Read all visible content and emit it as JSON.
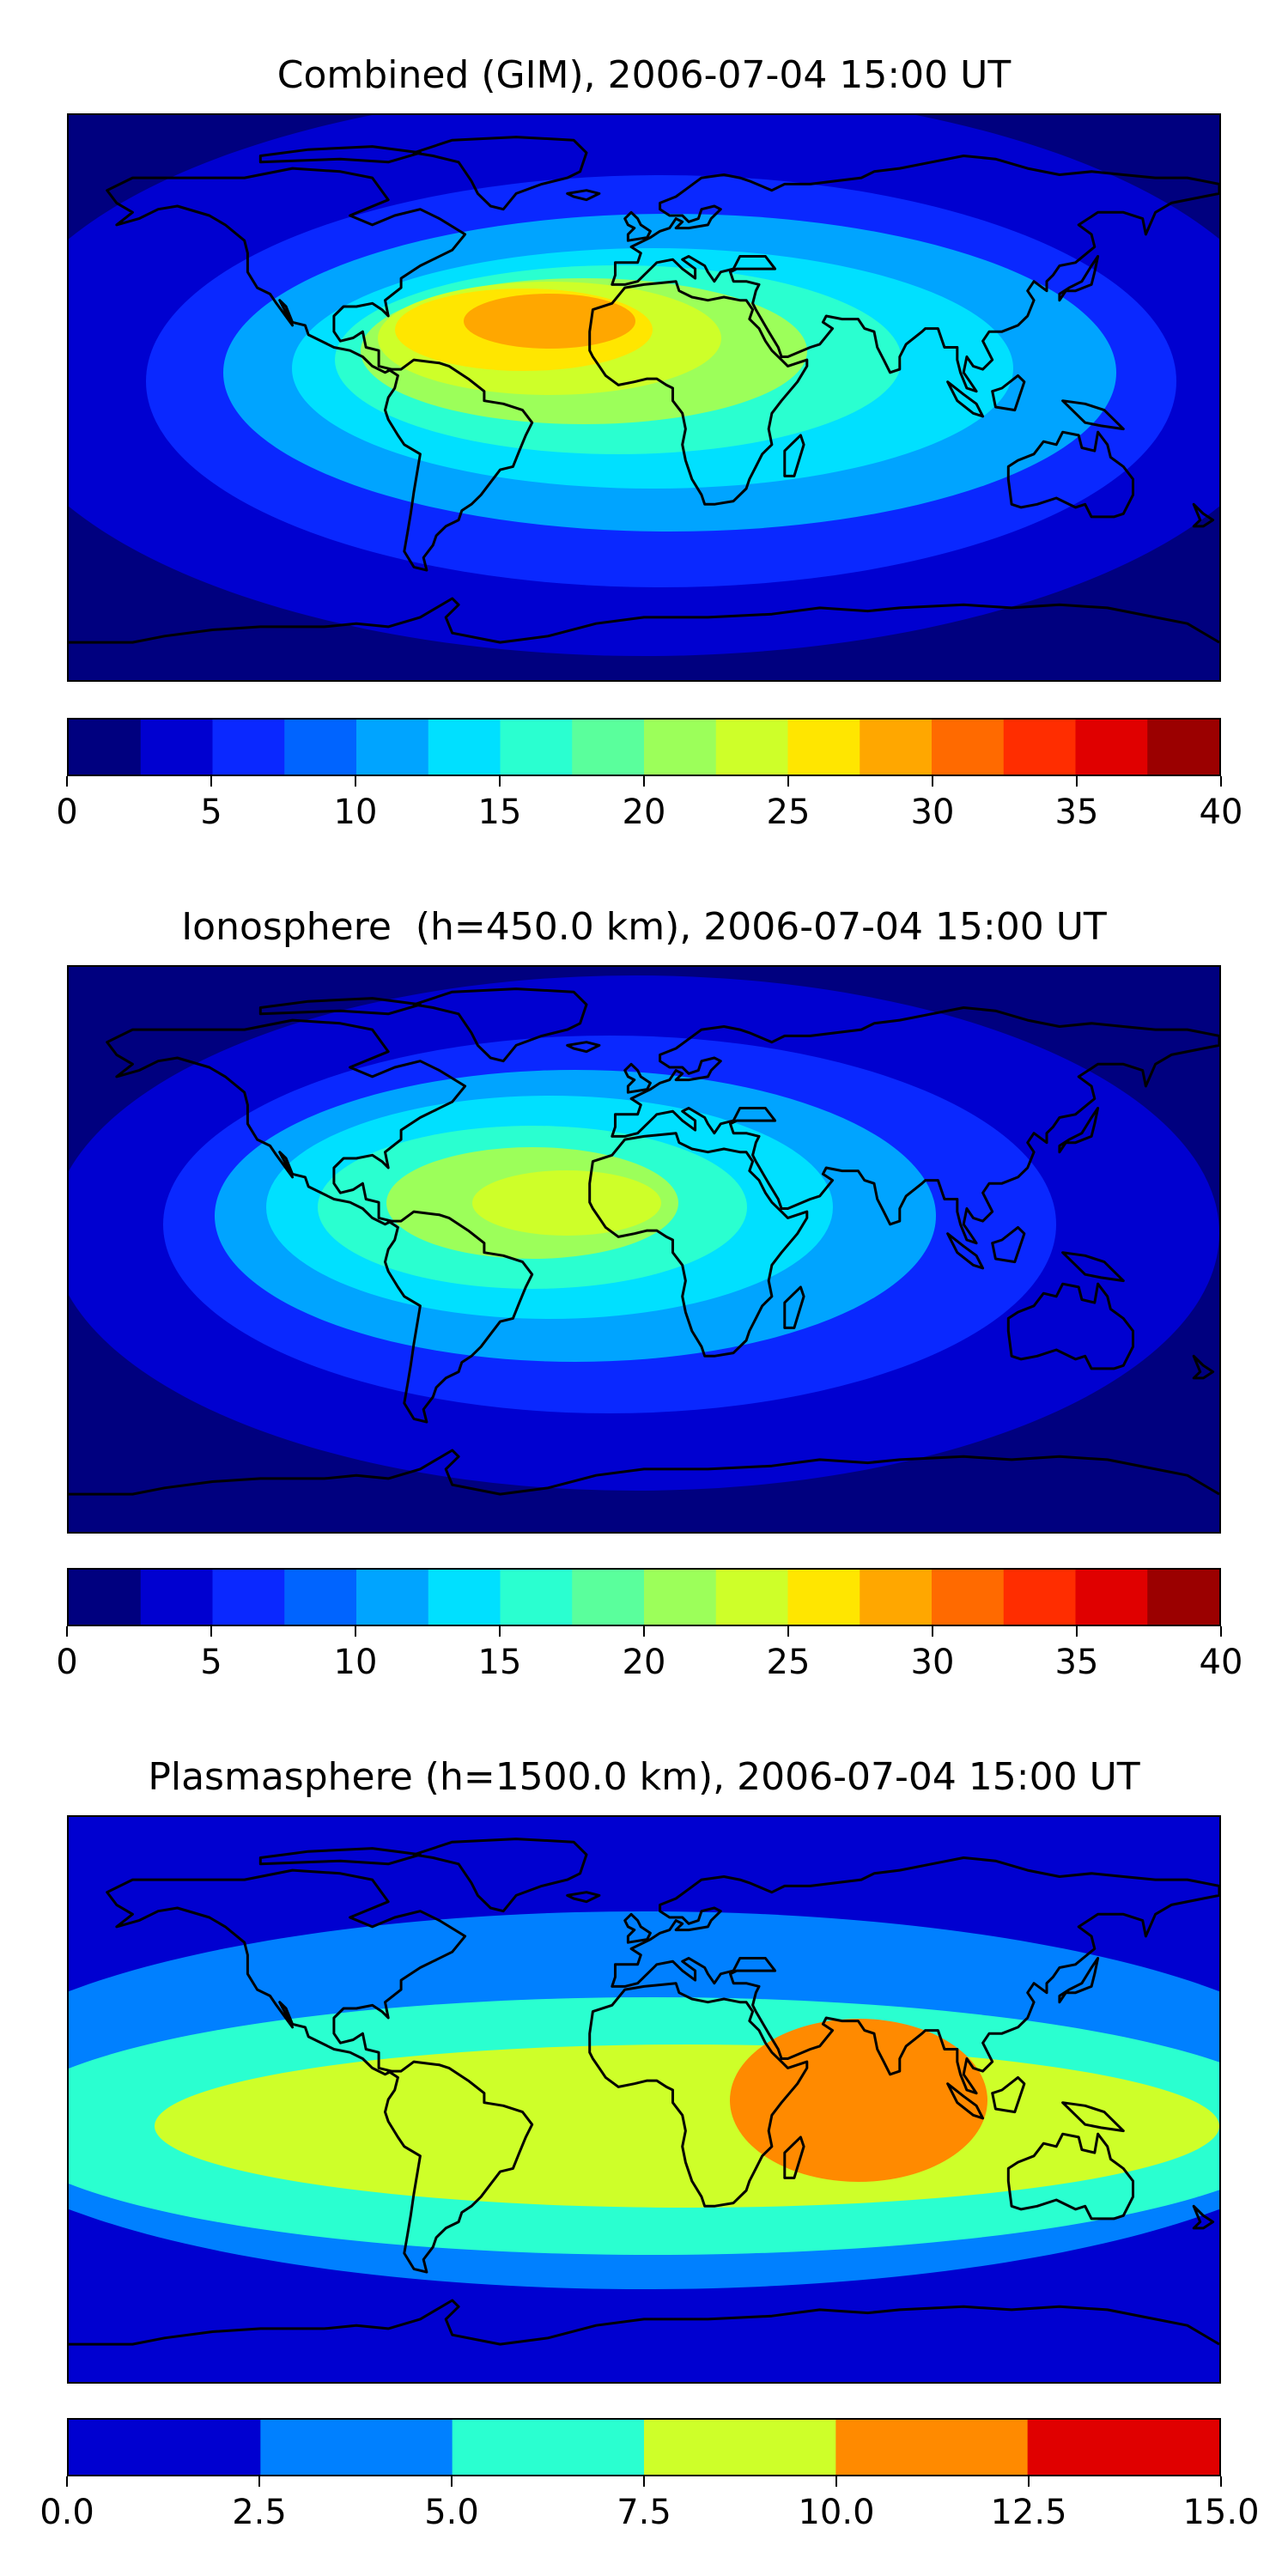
{
  "panels": [
    {
      "id": "combined",
      "title": "Combined (GIM), 2006-07-04 15:00 UT",
      "colorbar": {
        "min": 0,
        "max": 40,
        "levels": [
          0,
          2.5,
          5,
          7.5,
          10,
          12.5,
          15,
          17.5,
          20,
          22.5,
          25,
          27.5,
          30,
          32.5,
          35,
          37.5,
          40
        ],
        "colors": [
          "#00007f",
          "#0000d0",
          "#0a28ff",
          "#0064ff",
          "#00a4ff",
          "#00e0ff",
          "#2affd0",
          "#5aff9c",
          "#9cff5a",
          "#ceff29",
          "#ffe600",
          "#ffa700",
          "#ff6a00",
          "#ff2d00",
          "#e00000",
          "#9b0000"
        ],
        "tick_labels": [
          "0",
          "5",
          "10",
          "15",
          "20",
          "25",
          "30",
          "35",
          "40"
        ],
        "tick_values": [
          0,
          5,
          10,
          15,
          20,
          25,
          30,
          35,
          40
        ]
      },
      "peak_value": 31,
      "peak_region": "West Africa / Sahara"
    },
    {
      "id": "ionosphere",
      "title": "Ionosphere  (h=450.0 km), 2006-07-04 15:00 UT",
      "colorbar": {
        "min": 0,
        "max": 40,
        "levels": [
          0,
          2.5,
          5,
          7.5,
          10,
          12.5,
          15,
          17.5,
          20,
          22.5,
          25,
          27.5,
          30,
          32.5,
          35,
          37.5,
          40
        ],
        "colors": [
          "#00007f",
          "#0000d0",
          "#0a28ff",
          "#0064ff",
          "#00a4ff",
          "#00e0ff",
          "#2affd0",
          "#5aff9c",
          "#9cff5a",
          "#ceff29",
          "#ffe600",
          "#ffa700",
          "#ff6a00",
          "#ff2d00",
          "#e00000",
          "#9b0000"
        ],
        "tick_labels": [
          "0",
          "5",
          "10",
          "15",
          "20",
          "25",
          "30",
          "35",
          "40"
        ],
        "tick_values": [
          0,
          5,
          10,
          15,
          20,
          25,
          30,
          35,
          40
        ]
      },
      "peak_value": 23,
      "peak_region": "West Africa / Sahara"
    },
    {
      "id": "plasmasphere",
      "title": "Plasmasphere (h=1500.0 km), 2006-07-04 15:00 UT",
      "colorbar": {
        "min": 0,
        "max": 15,
        "levels": [
          0,
          2.5,
          5,
          7.5,
          10,
          12.5,
          15
        ],
        "colors": [
          "#0000d0",
          "#0080ff",
          "#2affd0",
          "#ceff29",
          "#ff8a00",
          "#e00000"
        ],
        "tick_labels": [
          "0.0",
          "2.5",
          "5.0",
          "7.5",
          "10.0",
          "12.5",
          "15.0"
        ],
        "tick_values": [
          0,
          2.5,
          5,
          7.5,
          10,
          12.5,
          15
        ]
      },
      "peak_value": 11,
      "peak_region": "Indian Ocean / South-East Asia"
    }
  ]
}
